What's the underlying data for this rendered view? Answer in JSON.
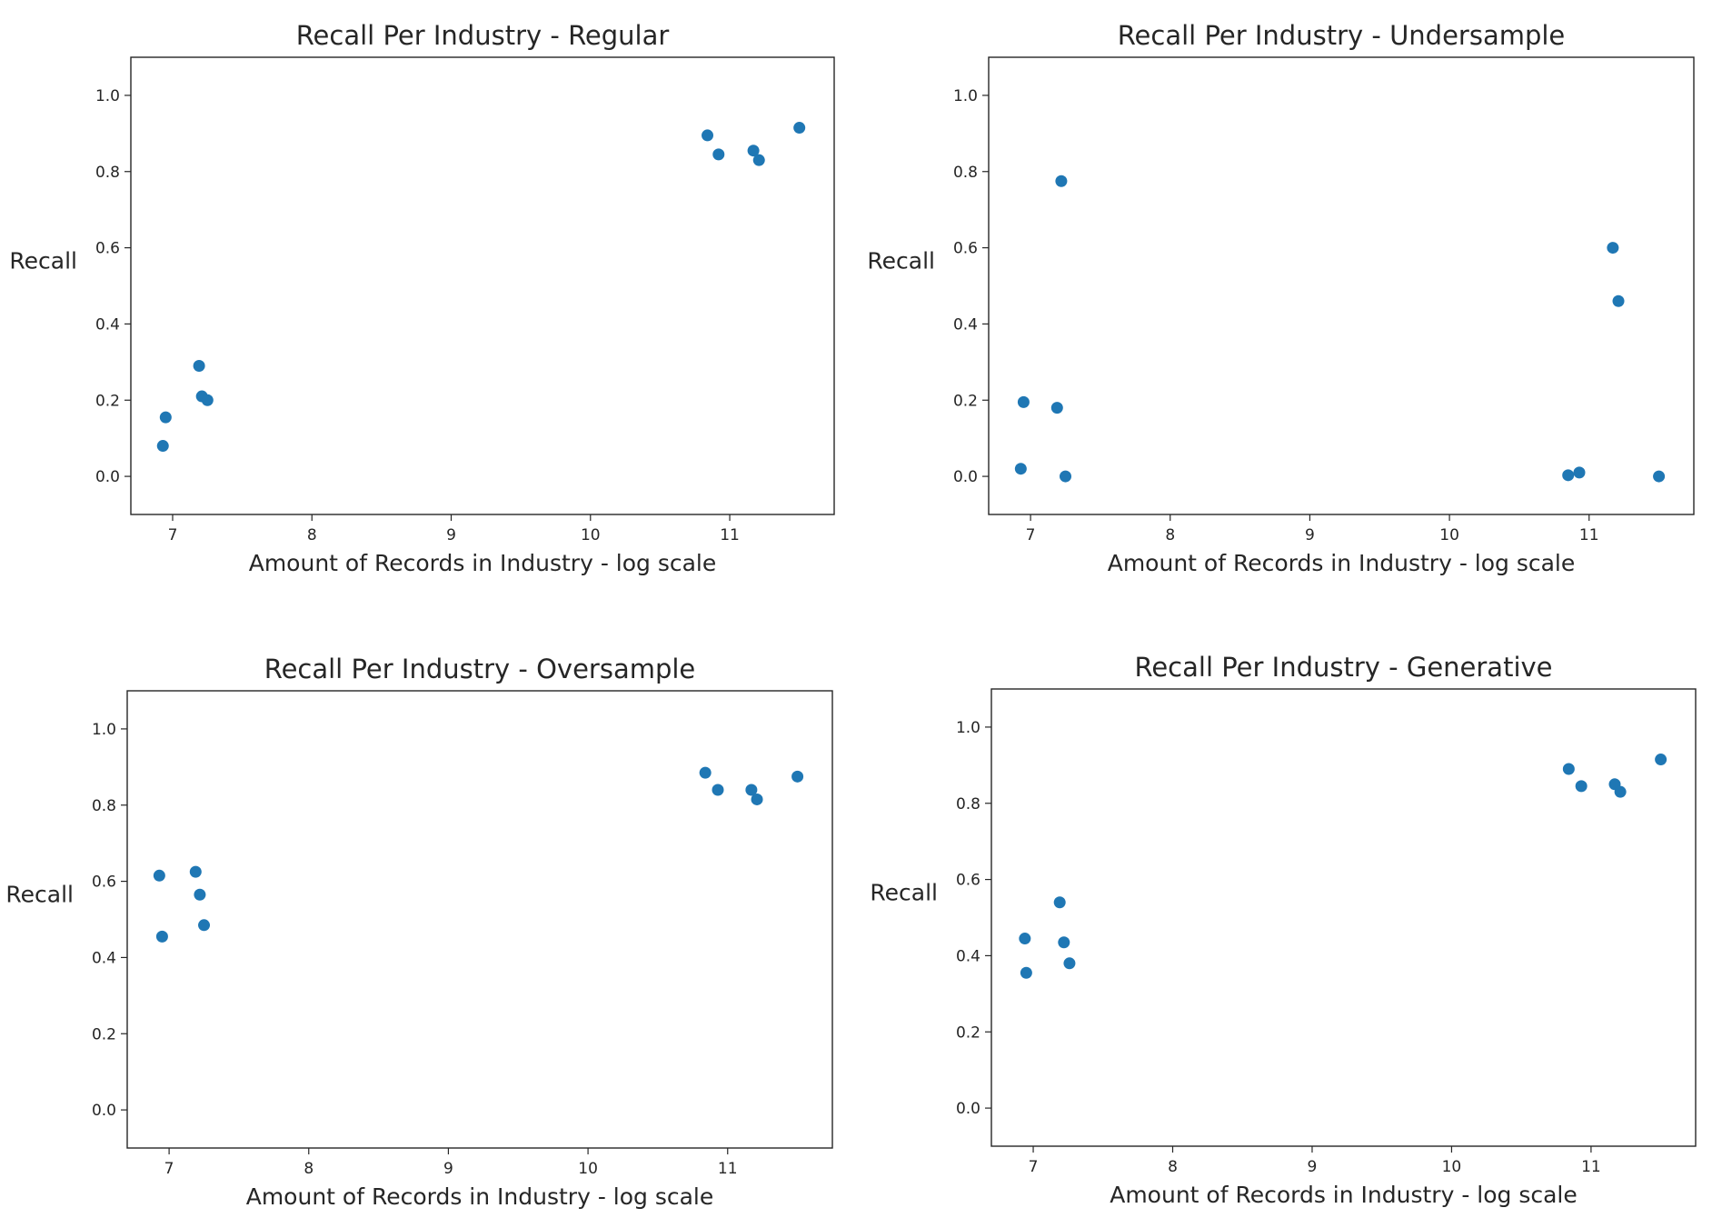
{
  "figure": {
    "x_label": "Amount of Records in Industry - log scale",
    "y_label": "Recall"
  },
  "colors": {
    "point": "#1f77b4"
  },
  "chart_data": [
    {
      "type": "scatter",
      "title": "Recall Per Industry - Regular",
      "xlabel": "Amount of Records in Industry - log scale",
      "ylabel": "Recall",
      "xlim": [
        6.7,
        11.75
      ],
      "ylim": [
        -0.1,
        1.1
      ],
      "xticks": [
        7,
        8,
        9,
        10,
        11
      ],
      "yticks": [
        "0.0",
        "0.2",
        "0.4",
        "0.6",
        "0.8",
        "1.0"
      ],
      "grid": false,
      "points": [
        {
          "x": 6.93,
          "y": 0.08
        },
        {
          "x": 6.95,
          "y": 0.155
        },
        {
          "x": 7.19,
          "y": 0.29
        },
        {
          "x": 7.21,
          "y": 0.21
        },
        {
          "x": 7.25,
          "y": 0.2
        },
        {
          "x": 10.84,
          "y": 0.895
        },
        {
          "x": 10.92,
          "y": 0.845
        },
        {
          "x": 11.17,
          "y": 0.855
        },
        {
          "x": 11.21,
          "y": 0.83
        },
        {
          "x": 11.5,
          "y": 0.915
        }
      ]
    },
    {
      "type": "scatter",
      "title": "Recall Per Industry - Undersample",
      "xlabel": "Amount of Records in Industry - log scale",
      "ylabel": "Recall",
      "xlim": [
        6.7,
        11.75
      ],
      "ylim": [
        -0.1,
        1.1
      ],
      "xticks": [
        7,
        8,
        9,
        10,
        11
      ],
      "yticks": [
        "0.0",
        "0.2",
        "0.4",
        "0.6",
        "0.8",
        "1.0"
      ],
      "grid": false,
      "points": [
        {
          "x": 6.93,
          "y": 0.02
        },
        {
          "x": 6.95,
          "y": 0.195
        },
        {
          "x": 7.19,
          "y": 0.18
        },
        {
          "x": 7.22,
          "y": 0.775
        },
        {
          "x": 7.25,
          "y": 0.0
        },
        {
          "x": 10.85,
          "y": 0.003
        },
        {
          "x": 10.93,
          "y": 0.01
        },
        {
          "x": 11.17,
          "y": 0.6
        },
        {
          "x": 11.21,
          "y": 0.46
        },
        {
          "x": 11.5,
          "y": 0.0
        }
      ]
    },
    {
      "type": "scatter",
      "title": "Recall Per Industry - Oversample",
      "xlabel": "Amount of Records in Industry - log scale",
      "ylabel": "Recall",
      "xlim": [
        6.7,
        11.75
      ],
      "ylim": [
        -0.1,
        1.1
      ],
      "xticks": [
        7,
        8,
        9,
        10,
        11
      ],
      "yticks": [
        "0.0",
        "0.2",
        "0.4",
        "0.6",
        "0.8",
        "1.0"
      ],
      "grid": false,
      "points": [
        {
          "x": 6.93,
          "y": 0.615
        },
        {
          "x": 6.95,
          "y": 0.455
        },
        {
          "x": 7.19,
          "y": 0.625
        },
        {
          "x": 7.22,
          "y": 0.565
        },
        {
          "x": 7.25,
          "y": 0.485
        },
        {
          "x": 10.84,
          "y": 0.885
        },
        {
          "x": 10.93,
          "y": 0.84
        },
        {
          "x": 11.17,
          "y": 0.84
        },
        {
          "x": 11.21,
          "y": 0.815
        },
        {
          "x": 11.5,
          "y": 0.875
        }
      ]
    },
    {
      "type": "scatter",
      "title": "Recall Per Industry - Generative",
      "xlabel": "Amount of Records in Industry - log scale",
      "ylabel": "Recall",
      "xlim": [
        6.7,
        11.75
      ],
      "ylim": [
        -0.1,
        1.1
      ],
      "xticks": [
        7,
        8,
        9,
        10,
        11
      ],
      "yticks": [
        "0.0",
        "0.2",
        "0.4",
        "0.6",
        "0.8",
        "1.0"
      ],
      "grid": false,
      "points": [
        {
          "x": 6.94,
          "y": 0.445
        },
        {
          "x": 6.95,
          "y": 0.355
        },
        {
          "x": 7.19,
          "y": 0.54
        },
        {
          "x": 7.22,
          "y": 0.435
        },
        {
          "x": 7.26,
          "y": 0.38
        },
        {
          "x": 10.84,
          "y": 0.89
        },
        {
          "x": 10.93,
          "y": 0.845
        },
        {
          "x": 11.17,
          "y": 0.85
        },
        {
          "x": 11.21,
          "y": 0.83
        },
        {
          "x": 11.5,
          "y": 0.915
        }
      ]
    }
  ]
}
